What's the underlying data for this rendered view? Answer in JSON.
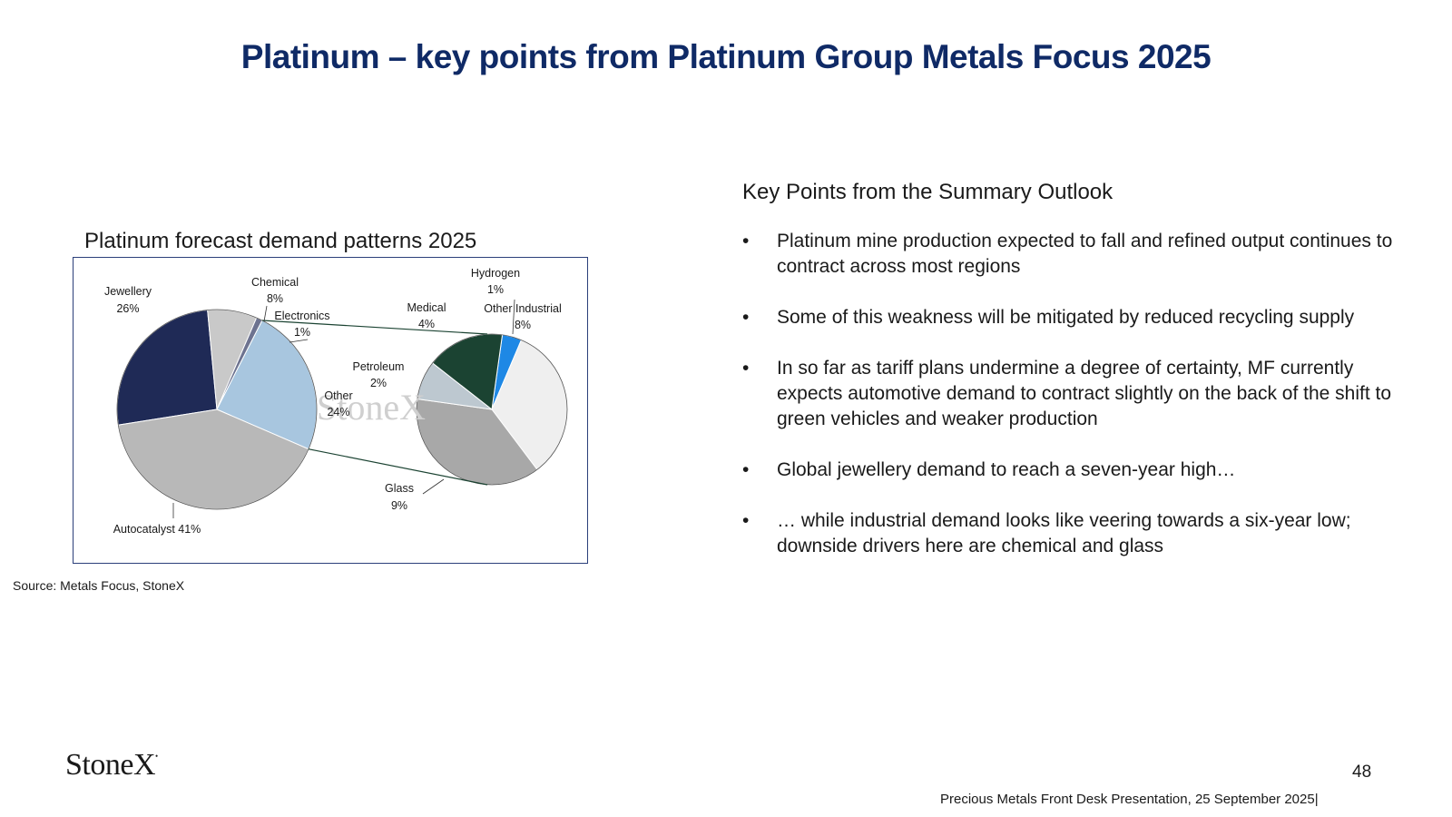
{
  "page": {
    "title": "Platinum – key points from Platinum Group Metals Focus 2025",
    "chart_heading": "Platinum forecast demand patterns 2025",
    "source": "Source: Metals Focus, StoneX",
    "key_points_heading": "Key Points from the Summary Outlook",
    "bullet_symbol": "•",
    "bullets": [
      "Platinum mine production expected to fall and refined output continues to contract across most regions",
      "Some of this weakness will be mitigated by reduced recycling supply",
      "In so far as tariff plans undermine a degree of certainty, MF currently expects automotive demand to contract slightly on the back of the shift to green vehicles and weaker production",
      "Global jewellery demand to reach a seven-year high…",
      "… while industrial demand looks like veering towards a six-year low; downside drivers here are chemical and glass"
    ],
    "logo": "StoneX",
    "page_number": "48",
    "footer": "Precious Metals Front Desk Presentation, 25 September 2025|"
  },
  "chart_data": {
    "type": "pie",
    "subtype": "pie-of-pie",
    "title": "Platinum forecast demand patterns 2025",
    "watermark": "StoneX",
    "main_pie": [
      {
        "name": "Jewellery",
        "value": 26,
        "label": "26%",
        "color": "#1f2a56"
      },
      {
        "name": "Chemical",
        "value": 8,
        "label": "8%",
        "color": "#c9c9c9"
      },
      {
        "name": "Electronics",
        "value": 1,
        "label": "1%",
        "color": "#6d7390"
      },
      {
        "name": "Other",
        "value": 24,
        "label": "24%",
        "color": "#a8c6df"
      },
      {
        "name": "Autocatalyst",
        "value": 41,
        "label": "41%",
        "color": "#b8b8b8"
      }
    ],
    "secondary_pie": [
      {
        "name": "Hydrogen",
        "value": 1,
        "label": "1%",
        "color": "#1e88e5"
      },
      {
        "name": "Other Industrial",
        "value": 8,
        "label": "8%",
        "color": "#efefef"
      },
      {
        "name": "Glass",
        "value": 9,
        "label": "9%",
        "color": "#a8a8a8"
      },
      {
        "name": "Petroleum",
        "value": 2,
        "label": "2%",
        "color": "#bdc8d0"
      },
      {
        "name": "Medical",
        "value": 4,
        "label": "4%",
        "color": "#1b4332"
      }
    ]
  }
}
